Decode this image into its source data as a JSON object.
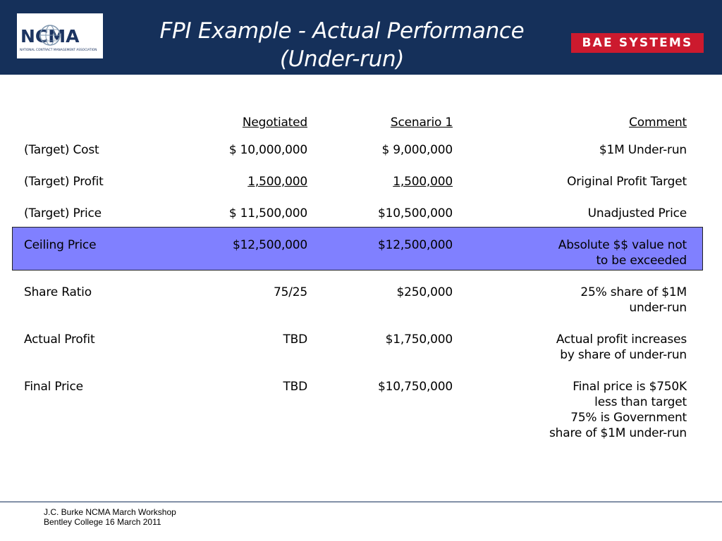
{
  "header": {
    "title_line1": "FPI Example - Actual Performance",
    "title_line2": "(Under-run)",
    "ncma_logo_text": "NCMA",
    "ncma_logo_subtext": "NATIONAL CONTRACT MANAGEMENT ASSOCIATION",
    "bae_logo_text": "BAE SYSTEMS",
    "bae_color": "#cc1a2e",
    "header_color": "#15305a"
  },
  "table": {
    "headers": {
      "negotiated": "Negotiated",
      "scenario1": "Scenario 1",
      "comment": "Comment"
    },
    "highlight_color": "#8080ff",
    "rows": [
      {
        "label": "(Target) Cost",
        "negotiated": "$ 10,000,000",
        "scenario1": "$ 9,000,000",
        "comment": "$1M Under-run"
      },
      {
        "label": "(Target) Profit",
        "negotiated": "1,500,000",
        "scenario1": "1,500,000",
        "comment": "Original Profit Target"
      },
      {
        "label": "(Target) Price",
        "negotiated": "$ 11,500,000",
        "scenario1": "$10,500,000",
        "comment": "Unadjusted Price"
      },
      {
        "label": "Ceiling Price",
        "negotiated": "$12,500,000",
        "scenario1": "$12,500,000",
        "comment": "Absolute $$ value not\nto be exceeded"
      },
      {
        "label": "Share Ratio",
        "negotiated": "75/25",
        "scenario1": "$250,000",
        "comment": "25% share of $1M\nunder-run"
      },
      {
        "label": "Actual Profit",
        "negotiated": "TBD",
        "scenario1": "$1,750,000",
        "comment": "Actual profit increases\nby share of under-run"
      },
      {
        "label": "Final Price",
        "negotiated": "TBD",
        "scenario1": "$10,750,000",
        "comment": "Final price is $750K\nless than target\n75% is Government\nshare of $1M under-run"
      }
    ]
  },
  "footer": {
    "line1": "J.C. Burke NCMA March Workshop",
    "line2": "Bentley College 16 March 2011"
  }
}
